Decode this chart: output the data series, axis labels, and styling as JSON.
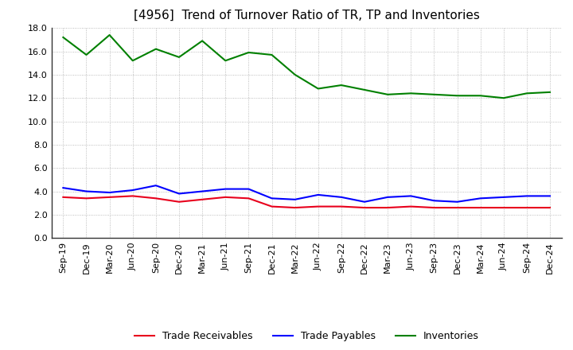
{
  "title": "[4956]  Trend of Turnover Ratio of TR, TP and Inventories",
  "labels": [
    "Sep-19",
    "Dec-19",
    "Mar-20",
    "Jun-20",
    "Sep-20",
    "Dec-20",
    "Mar-21",
    "Jun-21",
    "Sep-21",
    "Dec-21",
    "Mar-22",
    "Jun-22",
    "Sep-22",
    "Dec-22",
    "Mar-23",
    "Jun-23",
    "Sep-23",
    "Dec-23",
    "Mar-24",
    "Jun-24",
    "Sep-24",
    "Dec-24"
  ],
  "trade_receivables": [
    3.5,
    3.4,
    3.5,
    3.6,
    3.4,
    3.1,
    3.3,
    3.5,
    3.4,
    2.7,
    2.6,
    2.7,
    2.7,
    2.6,
    2.6,
    2.7,
    2.6,
    2.6,
    2.6,
    2.6,
    2.6,
    2.6
  ],
  "trade_payables": [
    4.3,
    4.0,
    3.9,
    4.1,
    4.5,
    3.8,
    4.0,
    4.2,
    4.2,
    3.4,
    3.3,
    3.7,
    3.5,
    3.1,
    3.5,
    3.6,
    3.2,
    3.1,
    3.4,
    3.5,
    3.6,
    3.6
  ],
  "inventories": [
    17.2,
    15.7,
    17.4,
    15.2,
    16.2,
    15.5,
    16.9,
    15.2,
    15.9,
    15.7,
    14.0,
    12.8,
    13.1,
    12.7,
    12.3,
    12.4,
    12.3,
    12.2,
    12.2,
    12.0,
    12.4,
    12.5
  ],
  "color_tr": "#e8001c",
  "color_tp": "#0000ff",
  "color_inv": "#008000",
  "ylim": [
    0.0,
    18.0
  ],
  "yticks": [
    0.0,
    2.0,
    4.0,
    6.0,
    8.0,
    10.0,
    12.0,
    14.0,
    16.0,
    18.0
  ],
  "legend_tr": "Trade Receivables",
  "legend_tp": "Trade Payables",
  "legend_inv": "Inventories",
  "bg_color": "#ffffff",
  "plot_bg_color": "#ffffff",
  "title_fontsize": 11,
  "axis_fontsize": 8,
  "legend_fontsize": 9,
  "grid_color": "#aaaaaa",
  "spine_color": "#333333"
}
